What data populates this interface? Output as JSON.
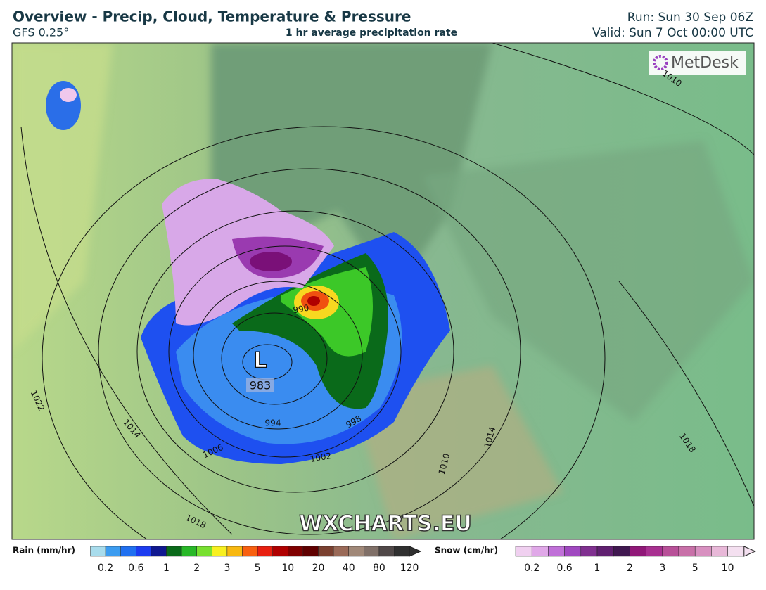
{
  "header": {
    "title": "Overview - Precip, Cloud, Temperature & Pressure",
    "model": "GFS 0.25°",
    "subtitle": "1 hr average precipitation rate",
    "run": "Run: Sun 30 Sep 06Z",
    "valid": "Valid: Sun 7 Oct 00:00 UTC"
  },
  "map": {
    "logo": "MetDesk",
    "watermark": "WXCHARTS.EU",
    "low": {
      "symbol": "L",
      "pressure": 983
    },
    "isobar_labels": [
      1010,
      1022,
      1014,
      1006,
      994,
      990,
      1002,
      998,
      1010,
      1014,
      1018,
      1018
    ]
  },
  "legend": {
    "rain": {
      "title": "Rain (mm/hr)",
      "labels": [
        0.2,
        0.6,
        1,
        2,
        3,
        5,
        10,
        20,
        40,
        80,
        120
      ]
    },
    "snow": {
      "title": "Snow (cm/hr)",
      "labels": [
        0.2,
        0.6,
        1,
        2,
        3,
        5,
        10
      ]
    }
  }
}
